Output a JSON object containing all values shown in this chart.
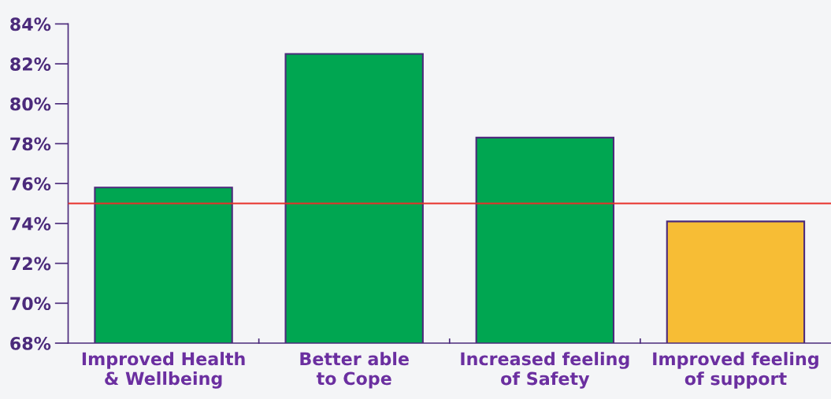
{
  "chart_data": {
    "type": "bar",
    "categories": [
      "Improved Health\n& Wellbeing",
      "Better able\nto Cope",
      "Increased feeling\nof Safety",
      "Improved feeling\nof support"
    ],
    "values": [
      75.8,
      82.5,
      78.3,
      74.1
    ],
    "colors": [
      "#00a651",
      "#00a651",
      "#00a651",
      "#f7bd35"
    ],
    "ylim": [
      68,
      84
    ],
    "yticks": [
      {
        "value": 68,
        "label": "68%"
      },
      {
        "value": 70,
        "label": "70%"
      },
      {
        "value": 72,
        "label": "72%"
      },
      {
        "value": 74,
        "label": "74%"
      },
      {
        "value": 76,
        "label": "76%"
      },
      {
        "value": 78,
        "label": "78%"
      },
      {
        "value": 80,
        "label": "80%"
      },
      {
        "value": 82,
        "label": "82%"
      },
      {
        "value": 84,
        "label": "84%"
      }
    ],
    "ref_lines": [
      {
        "axis": "y",
        "value": 75,
        "label": null,
        "color": "#e8302a"
      }
    ],
    "grid": false,
    "legend": false
  }
}
